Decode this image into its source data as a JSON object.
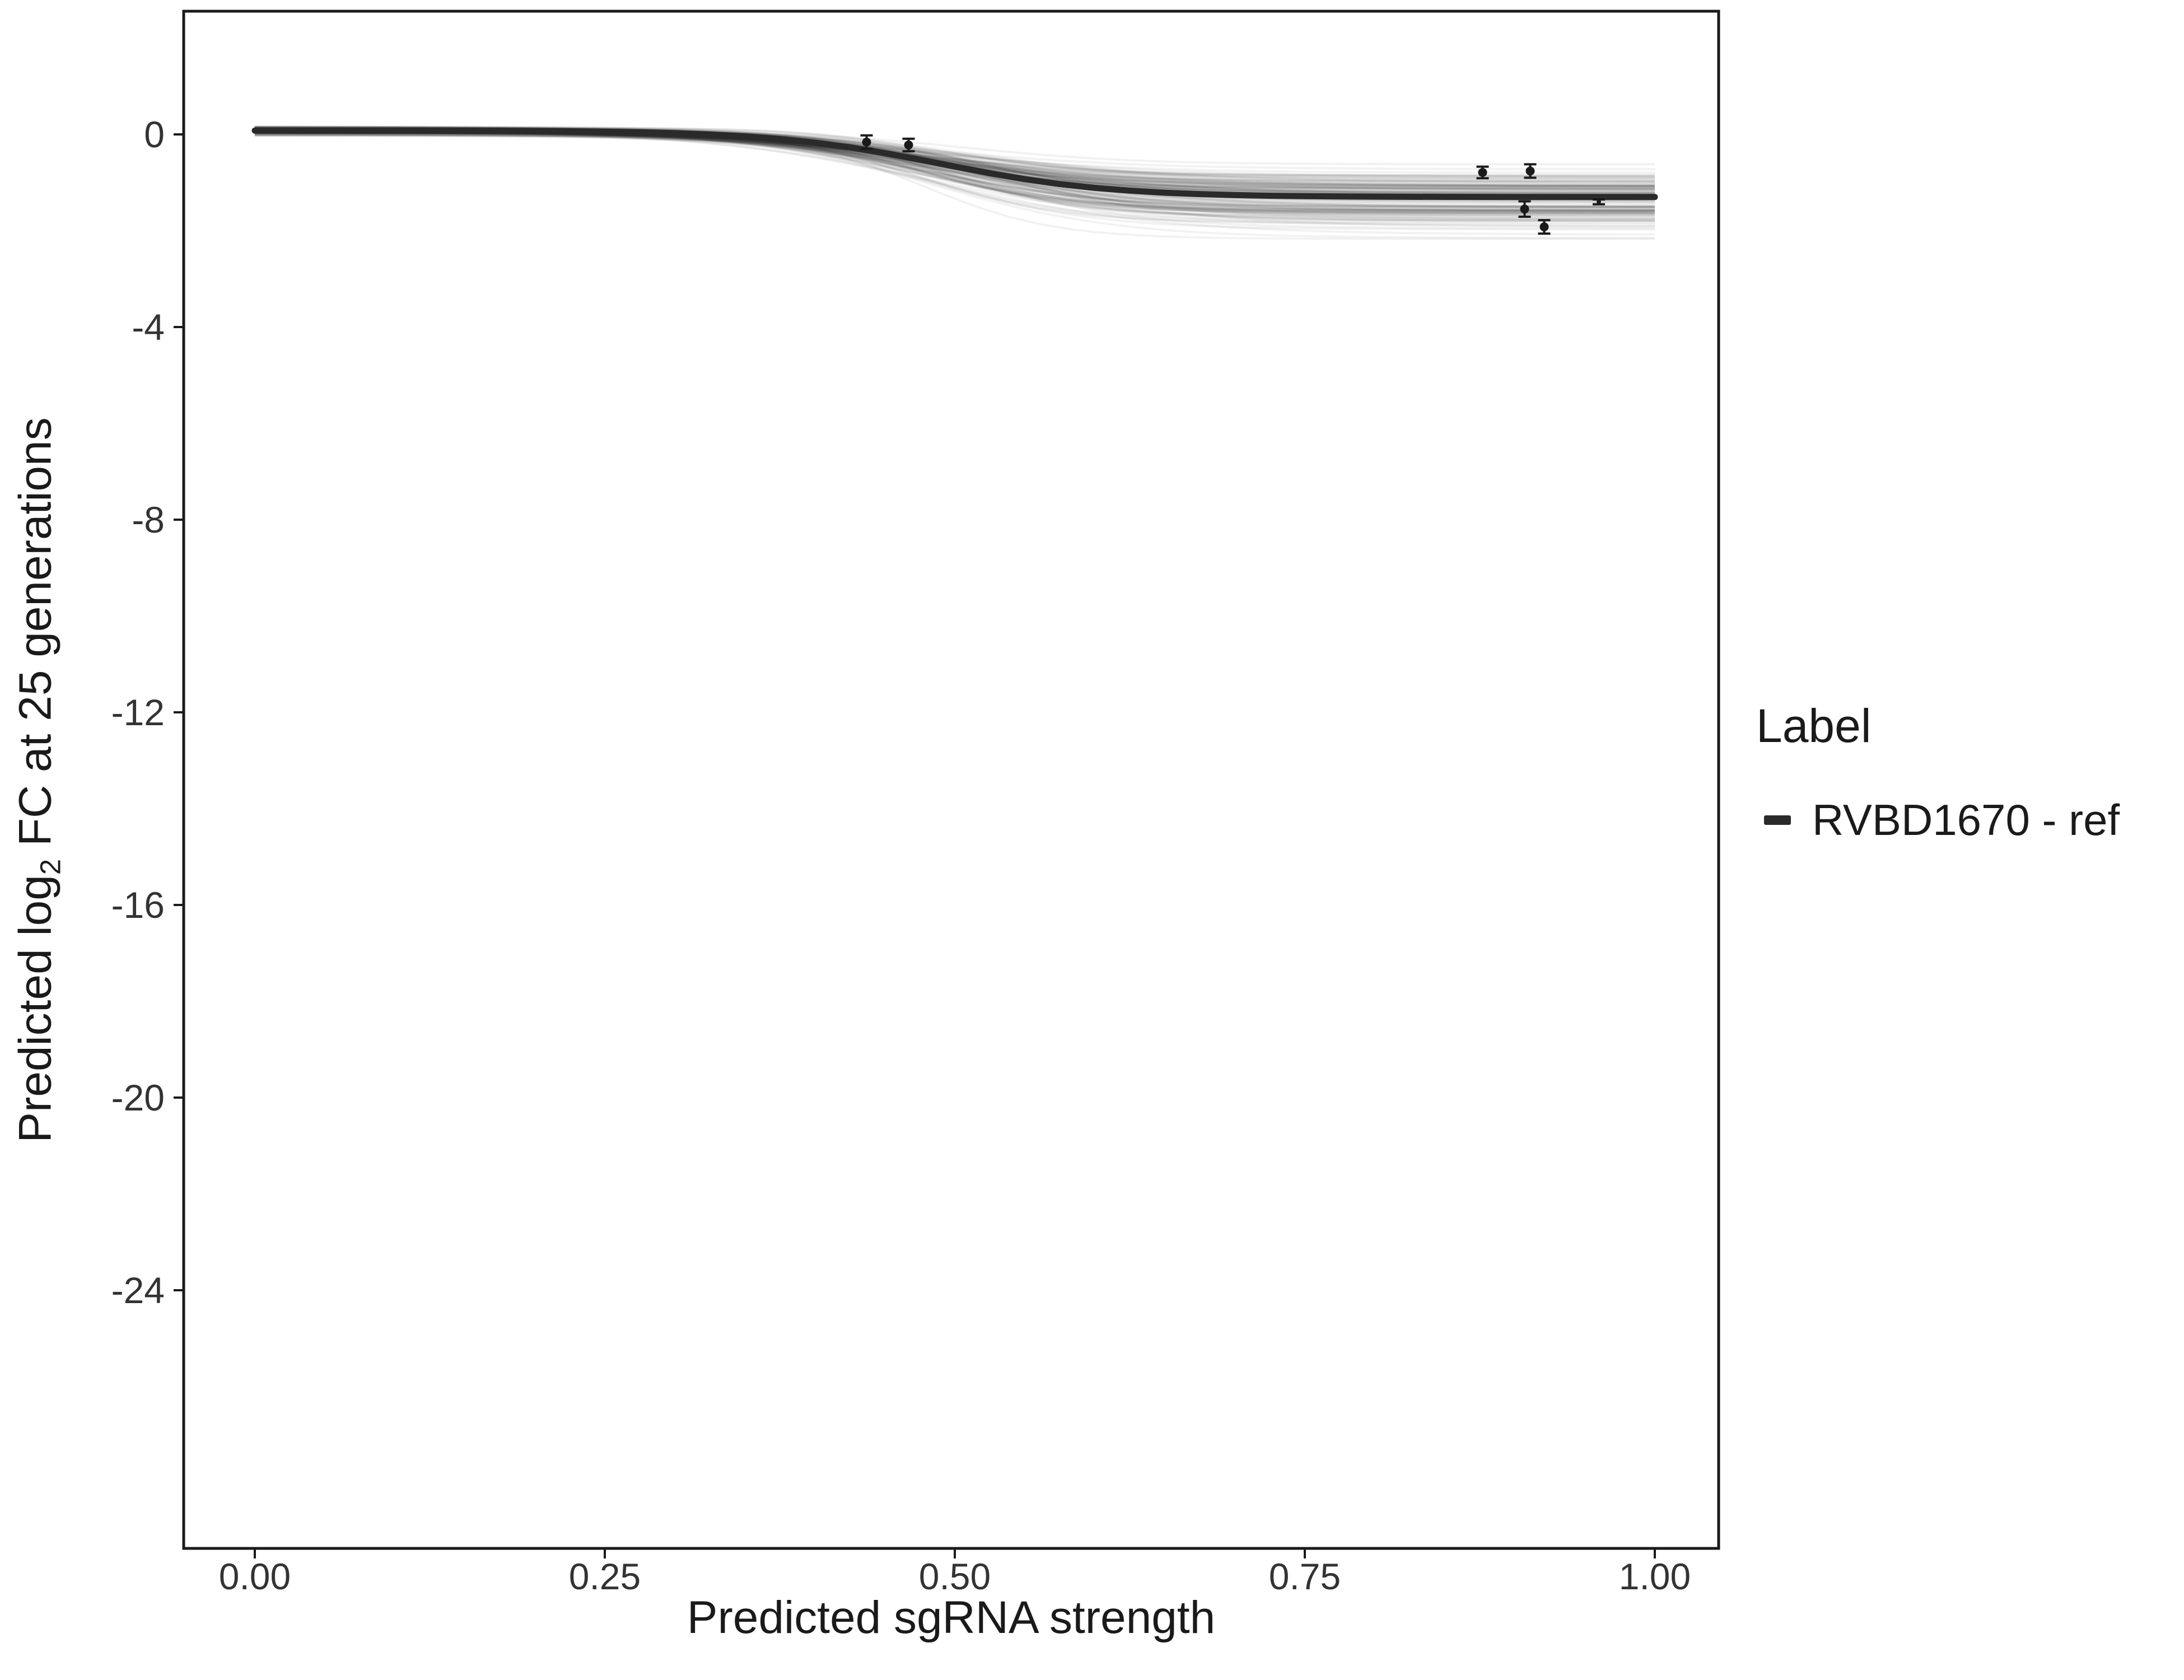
{
  "chart_data": {
    "type": "line",
    "title": "",
    "xlabel": "Predicted sgRNA strength",
    "ylabel": "Predicted log2 FC at 25 generations",
    "ylabel_parts": {
      "prefix": "Predicted log",
      "sub": "2",
      "suffix": " FC at 25 generations"
    },
    "xlim": [
      -0.05,
      1.05
    ],
    "ylim": [
      -29.4,
      2.6
    ],
    "grid": false,
    "x_ticks": {
      "values": [
        0,
        0.25,
        0.5,
        0.75,
        1.0
      ],
      "labels": [
        "0.00",
        "0.25",
        "0.50",
        "0.75",
        "1.00"
      ]
    },
    "y_ticks": {
      "values": [
        0,
        -4,
        -8,
        -12,
        -16,
        -20,
        -24
      ],
      "labels": [
        "0",
        "-4",
        "-8",
        "-12",
        "-16",
        "-20",
        "-24"
      ]
    },
    "legend": {
      "title": "Label",
      "position": "right",
      "items": [
        {
          "label": "RVBD1670 - ref",
          "color": "#2a2a2a",
          "marker": "line"
        }
      ]
    },
    "reference_curve": {
      "name": "RVBD1670 - ref",
      "color": "#2a2a2a",
      "stroke_width": 11,
      "x": [
        0,
        0.025,
        0.05,
        0.075,
        0.1,
        0.125,
        0.15,
        0.175,
        0.2,
        0.225,
        0.25,
        0.275,
        0.3,
        0.325,
        0.35,
        0.375,
        0.4,
        0.425,
        0.45,
        0.475,
        0.5,
        0.525,
        0.55,
        0.575,
        0.6,
        0.625,
        0.65,
        0.675,
        0.7,
        0.725,
        0.75,
        0.775,
        0.8,
        0.825,
        0.85,
        0.875,
        0.9,
        0.925,
        0.95,
        0.975,
        1.0
      ],
      "y": [
        0.08,
        0.079,
        0.079,
        0.079,
        0.078,
        0.077,
        0.075,
        0.073,
        0.069,
        0.064,
        0.055,
        0.043,
        0.024,
        -0.003,
        -0.042,
        -0.097,
        -0.172,
        -0.269,
        -0.388,
        -0.524,
        -0.667,
        -0.806,
        -0.929,
        -1.031,
        -1.11,
        -1.168,
        -1.21,
        -1.239,
        -1.26,
        -1.273,
        -1.282,
        -1.288,
        -1.292,
        -1.295,
        -1.297,
        -1.298,
        -1.299,
        -1.299,
        -1.299,
        -1.3,
        -1.3
      ]
    },
    "posterior_samples": {
      "count": 130,
      "seed": 11,
      "color": "#000000",
      "opacity": 0.05,
      "stroke_width": 4,
      "start_mean": 0.08,
      "start_sd": 0.09,
      "end_mean": -1.3,
      "end_sd": 0.55,
      "mid_mean": 0.49,
      "mid_sd": 0.03,
      "slope_min": 0.045,
      "slope_max": 0.085
    },
    "points": [
      {
        "x": 0.437,
        "y": -0.16,
        "err": 0.14
      },
      {
        "x": 0.467,
        "y": -0.22,
        "err": 0.13
      },
      {
        "x": 0.877,
        "y": -0.79,
        "err": 0.12
      },
      {
        "x": 0.911,
        "y": -0.76,
        "err": 0.14
      },
      {
        "x": 0.907,
        "y": -1.55,
        "err": 0.16
      },
      {
        "x": 0.921,
        "y": -1.92,
        "err": 0.14
      },
      {
        "x": 0.96,
        "y": -1.4,
        "err": 0.05,
        "r": 4
      }
    ],
    "point_color": "#1a1a1a",
    "panel_border_color": "#1a1a1a"
  }
}
